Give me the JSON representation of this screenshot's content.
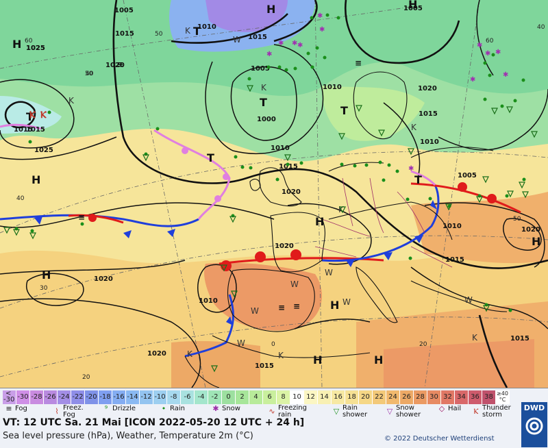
{
  "legend": {
    "scale_labels": [
      "<\n-30",
      "-30",
      "-28",
      "-26",
      "-24",
      "-22",
      "-20",
      "-18",
      "-16",
      "-14",
      "-12",
      "-10",
      "-8",
      "-6",
      "-4",
      "-2",
      "0",
      "2",
      "4",
      "6",
      "8",
      "10",
      "12",
      "14",
      "16",
      "18",
      "20",
      "22",
      "24",
      "26",
      "28",
      "30",
      "32",
      "34",
      "36",
      "38",
      "≥40\n°C"
    ],
    "scale_colors": [
      "#c99ee8",
      "#cf8fe6",
      "#c98be0",
      "#b98ae0",
      "#a38ee6",
      "#8f8ee8",
      "#7f92e8",
      "#7f9ff0",
      "#84adf2",
      "#8ab9f2",
      "#93c4f0",
      "#9dcff0",
      "#a7d9ee",
      "#a9e2e0",
      "#a4e6cc",
      "#9fe5b6",
      "#9de0a0",
      "#a7e69a",
      "#b8eb9a",
      "#c9ef9d",
      "#dbf3a6",
      "#ffffff",
      "#fbf6c3",
      "#f8f0b3",
      "#f7e9a3",
      "#f6e194",
      "#f5d786",
      "#f3c979",
      "#f1b96e",
      "#eda966",
      "#eb9a63",
      "#e78a63",
      "#e17865",
      "#d96869",
      "#ce5b6c",
      "#c0526c",
      "#ffffff"
    ],
    "weather_items": [
      {
        "icon": "≡",
        "label": "Fog",
        "color": "#111"
      },
      {
        "icon": "⌇",
        "label": "Freez.\nFog",
        "color": "#c0392b"
      },
      {
        "icon": "⁹",
        "label": "Drizzle",
        "color": "#1a8f1a"
      },
      {
        "icon": "•",
        "label": "Rain",
        "color": "#1a8f1a"
      },
      {
        "icon": "✱",
        "label": "Snow",
        "color": "#9b30a8"
      },
      {
        "icon": "∿",
        "label": "Freezing\nrain",
        "color": "#c0392b"
      },
      {
        "icon": "▽",
        "label": "Rain\nshower",
        "color": "#1a8f1a"
      },
      {
        "icon": "▽",
        "label": "Snow\nshower",
        "color": "#9b30a8"
      },
      {
        "icon": "◇",
        "label": "Hail",
        "color": "#9b1060"
      },
      {
        "icon": "Ⲕ",
        "label": "Thunder\nstorm",
        "color": "#c0392b"
      }
    ],
    "valid_time": "VT: 12 UTC Sa.  21 Mai [ICON 2022-05-20  12 UTC + 24 h]",
    "subtitle": "Sea level pressure (hPa), Weather, Temperature 2m (°C)",
    "copyright": "© 2022 Deutscher Wetterdienst",
    "logo_text": "DWD"
  },
  "map": {
    "pressure_labels": [
      "1005",
      "1015",
      "1010",
      "1015",
      "1025",
      "1020",
      "1005",
      "1010",
      "1000",
      "1010",
      "1015",
      "1015",
      "1005",
      "1025",
      "1020",
      "1020",
      "1010",
      "1005",
      "1015",
      "1010",
      "1015",
      "1020",
      "1010",
      "1020",
      "1015",
      "1015",
      "1025",
      "1020",
      "1020",
      "1015",
      "1020",
      "1020",
      "1010"
    ],
    "system_letters": [
      "H",
      "H",
      "T",
      "T",
      "T",
      "T",
      "T",
      "T",
      "H",
      "H",
      "H",
      "H",
      "H",
      "H",
      "H",
      "H"
    ],
    "small_letters": [
      "K",
      "W",
      "K",
      "K",
      "K",
      "W",
      "W",
      "W",
      "W",
      "K",
      "K",
      "W",
      "K",
      "W",
      "K"
    ],
    "lat_labels": [
      "50",
      "60",
      "40",
      "40",
      "30",
      "20",
      "0",
      "20",
      "50",
      "40",
      "60",
      "50"
    ]
  }
}
